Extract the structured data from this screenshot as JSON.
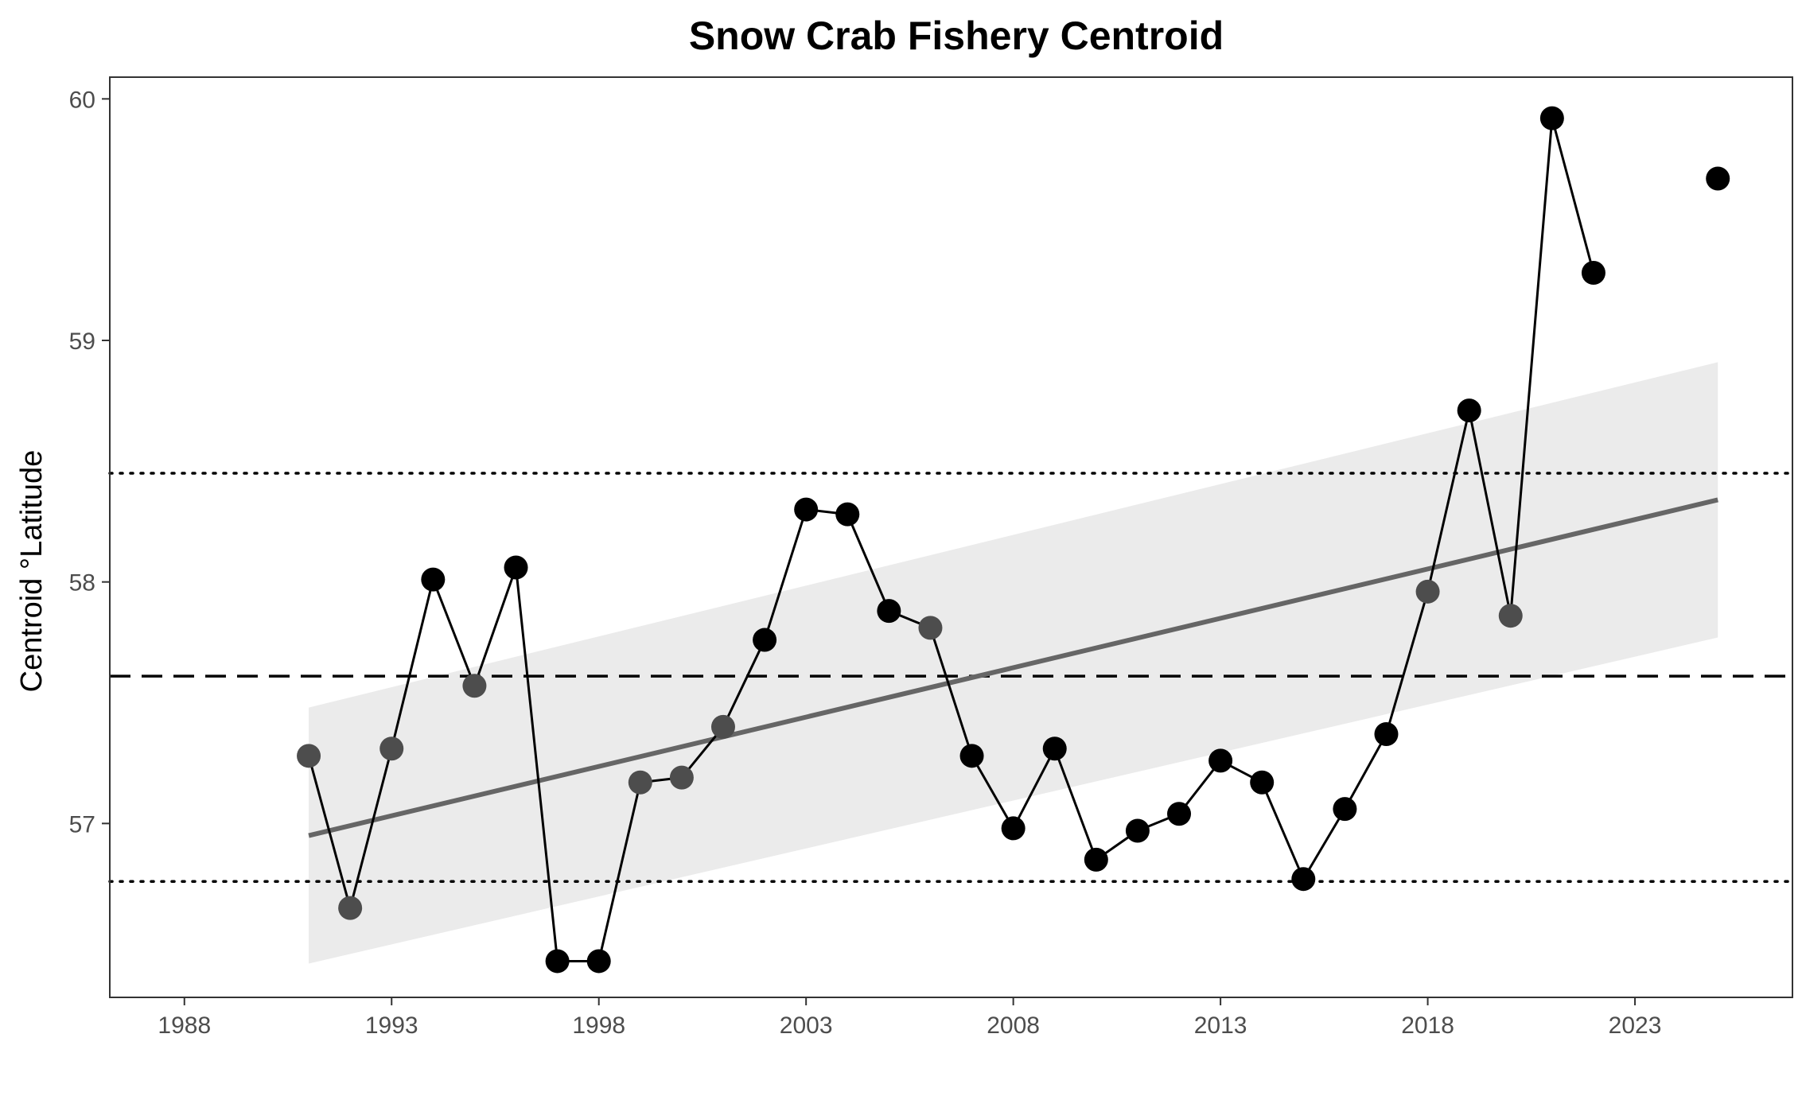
{
  "chart_data": {
    "type": "line",
    "title": "Snow Crab Fishery Centroid",
    "xlabel": "",
    "ylabel": "Centroid °Latitude",
    "xlim": [
      1986.2,
      2026.8
    ],
    "ylim": [
      56.28,
      60.09
    ],
    "xticks": [
      1988,
      1993,
      1998,
      2003,
      2008,
      2013,
      2018,
      2023
    ],
    "yticks": [
      57,
      58,
      59,
      60
    ],
    "grid": false,
    "legend": "none",
    "reference_lines": {
      "mean": 57.61,
      "upper_sd": 58.45,
      "lower_sd": 56.76
    },
    "trend": {
      "x": [
        1991,
        2025
      ],
      "y": [
        56.95,
        58.34
      ],
      "ci_upper": [
        57.48,
        58.91
      ],
      "ci_lower": [
        56.42,
        57.77
      ]
    },
    "series": [
      {
        "x": [
          1991,
          1992,
          1993,
          1994,
          1995,
          1996,
          1997,
          1998,
          1999,
          2000,
          2001,
          2002,
          2003,
          2004,
          2005,
          2006,
          2007,
          2008,
          2009,
          2010,
          2011,
          2012,
          2013,
          2014,
          2015,
          2016,
          2017,
          2018,
          2019,
          2020,
          2021,
          2022,
          2025
        ],
        "y": [
          57.28,
          56.65,
          57.31,
          58.01,
          57.57,
          58.06,
          56.43,
          56.43,
          57.17,
          57.19,
          57.4,
          57.76,
          58.3,
          58.28,
          57.88,
          57.81,
          57.28,
          56.98,
          57.31,
          56.85,
          56.97,
          57.04,
          57.26,
          57.17,
          56.77,
          57.06,
          57.37,
          57.96,
          58.71,
          57.86,
          59.92,
          59.28,
          59.67
        ]
      }
    ],
    "colors": {
      "point_dark": "#000000",
      "point_grey": "#4d4d4d",
      "trend_line": "#666666",
      "ribbon": "#ebebeb",
      "panel_border": "#333333"
    }
  }
}
